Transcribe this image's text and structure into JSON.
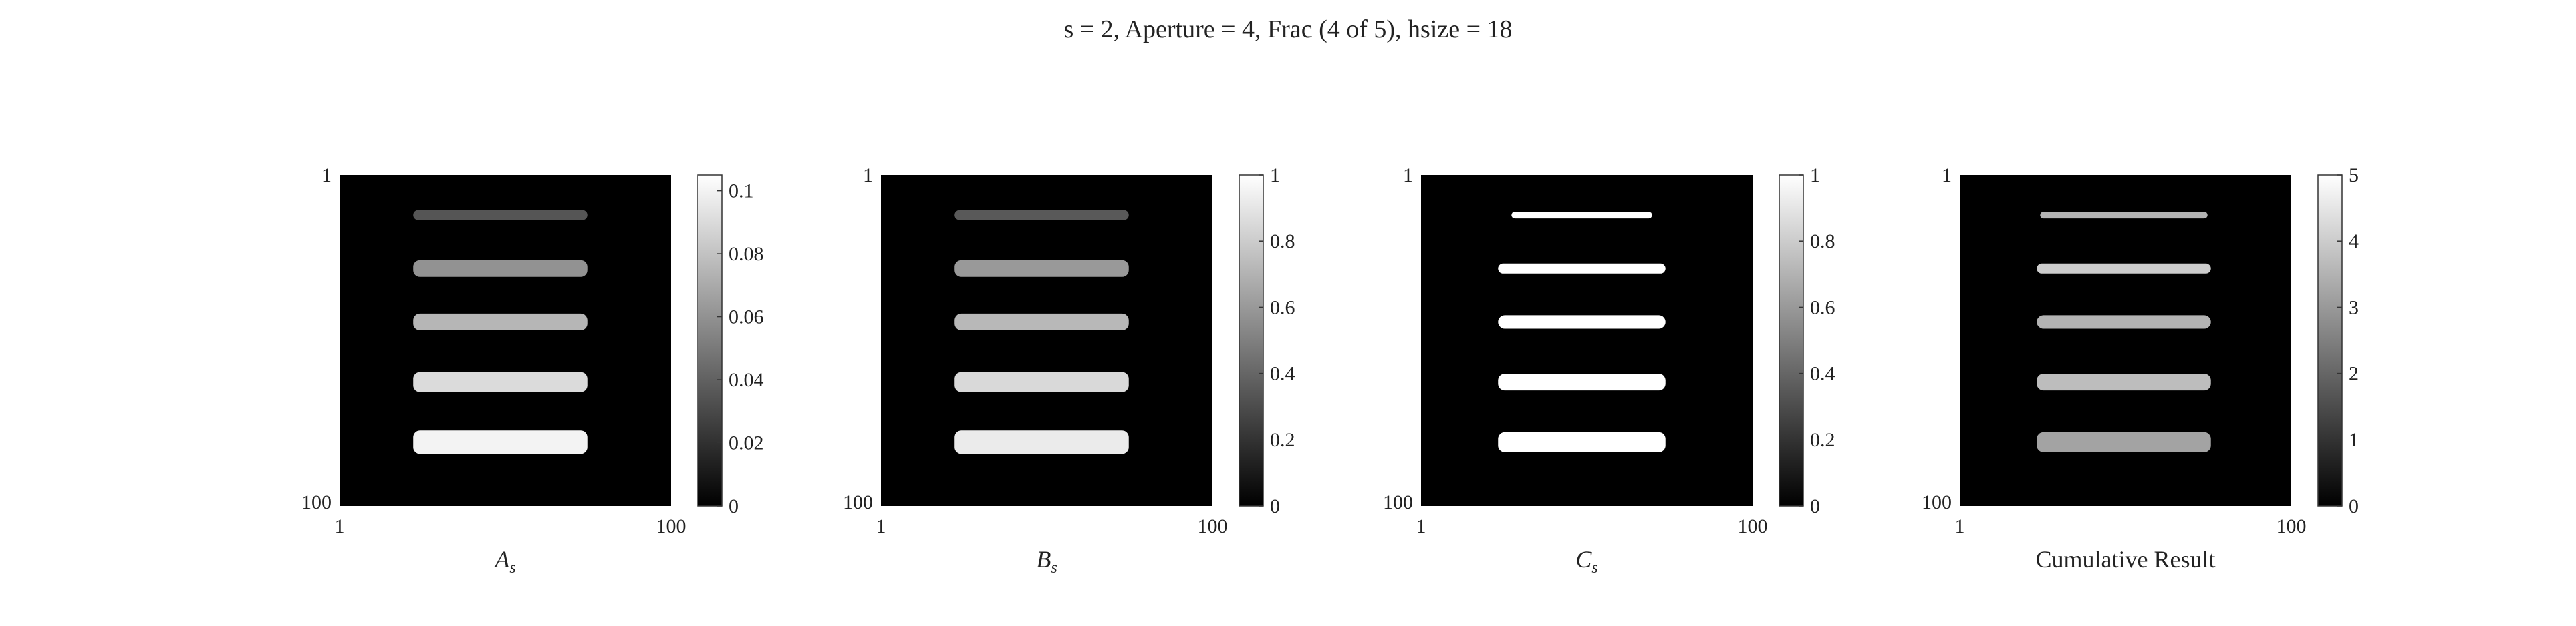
{
  "title": "s = 2, Aperture = 4, Frac (4 of 5), hsize = 18",
  "chart_data": [
    {
      "type": "heatmap",
      "xlabel_main": "A",
      "xlabel_sub": "s",
      "x_ticks": [
        "1",
        "100"
      ],
      "y_ticks": [
        "1",
        "100"
      ],
      "colormap": "gray",
      "clim": [
        0,
        0.105
      ],
      "colorbar_ticks": [
        "0",
        "0.02",
        "0.04",
        "0.06",
        "0.08",
        "0.1"
      ],
      "colorbar_values": [
        0,
        0.02,
        0.04,
        0.06,
        0.08,
        0.1
      ],
      "bars": [
        {
          "row": 13,
          "x_start": 23,
          "x_end": 75,
          "thickness": 3,
          "value": 0.035
        },
        {
          "row": 29,
          "x_start": 23,
          "x_end": 75,
          "thickness": 5,
          "value": 0.06
        },
        {
          "row": 45,
          "x_start": 23,
          "x_end": 75,
          "thickness": 5,
          "value": 0.075
        },
        {
          "row": 63,
          "x_start": 23,
          "x_end": 75,
          "thickness": 6,
          "value": 0.09
        },
        {
          "row": 81,
          "x_start": 23,
          "x_end": 75,
          "thickness": 7,
          "value": 0.1
        }
      ]
    },
    {
      "type": "heatmap",
      "xlabel_main": "B",
      "xlabel_sub": "s",
      "x_ticks": [
        "1",
        "100"
      ],
      "y_ticks": [
        "1",
        "100"
      ],
      "colormap": "gray",
      "clim": [
        0,
        1
      ],
      "colorbar_ticks": [
        "0",
        "0.2",
        "0.4",
        "0.6",
        "0.8",
        "1"
      ],
      "colorbar_values": [
        0,
        0.2,
        0.4,
        0.6,
        0.8,
        1
      ],
      "bars": [
        {
          "row": 13,
          "x_start": 23,
          "x_end": 75,
          "thickness": 3,
          "value": 0.35
        },
        {
          "row": 29,
          "x_start": 23,
          "x_end": 75,
          "thickness": 5,
          "value": 0.6
        },
        {
          "row": 45,
          "x_start": 23,
          "x_end": 75,
          "thickness": 5,
          "value": 0.72
        },
        {
          "row": 63,
          "x_start": 23,
          "x_end": 75,
          "thickness": 6,
          "value": 0.85
        },
        {
          "row": 81,
          "x_start": 23,
          "x_end": 75,
          "thickness": 7,
          "value": 0.92
        }
      ]
    },
    {
      "type": "heatmap",
      "xlabel_main": "C",
      "xlabel_sub": "s",
      "x_ticks": [
        "1",
        "100"
      ],
      "y_ticks": [
        "1",
        "100"
      ],
      "colormap": "gray",
      "clim": [
        0,
        1
      ],
      "colorbar_ticks": [
        "0",
        "0.2",
        "0.4",
        "0.6",
        "0.8",
        "1"
      ],
      "colorbar_values": [
        0,
        0.2,
        0.4,
        0.6,
        0.8,
        1
      ],
      "bars": [
        {
          "row": 13,
          "x_start": 28,
          "x_end": 70,
          "thickness": 2,
          "value": 1
        },
        {
          "row": 29,
          "x_start": 24,
          "x_end": 74,
          "thickness": 3,
          "value": 1
        },
        {
          "row": 45,
          "x_start": 24,
          "x_end": 74,
          "thickness": 4,
          "value": 1
        },
        {
          "row": 63,
          "x_start": 24,
          "x_end": 74,
          "thickness": 5,
          "value": 1
        },
        {
          "row": 81,
          "x_start": 24,
          "x_end": 74,
          "thickness": 6,
          "value": 1
        }
      ]
    },
    {
      "type": "heatmap",
      "xlabel_main": "Cumulative Result",
      "xlabel_sub": "",
      "x_ticks": [
        "1",
        "100"
      ],
      "y_ticks": [
        "1",
        "100"
      ],
      "colormap": "gray",
      "clim": [
        0,
        5
      ],
      "colorbar_ticks": [
        "0",
        "1",
        "2",
        "3",
        "4",
        "5"
      ],
      "colorbar_values": [
        0,
        1,
        2,
        3,
        4,
        5
      ],
      "bars": [
        {
          "row": 13,
          "x_start": 25,
          "x_end": 75,
          "thickness": 2,
          "value": 3.5
        },
        {
          "row": 29,
          "x_start": 24,
          "x_end": 76,
          "thickness": 3,
          "value": 4
        },
        {
          "row": 45,
          "x_start": 24,
          "x_end": 76,
          "thickness": 4,
          "value": 3.5
        },
        {
          "row": 63,
          "x_start": 24,
          "x_end": 76,
          "thickness": 5,
          "value": 3.7
        },
        {
          "row": 81,
          "x_start": 24,
          "x_end": 76,
          "thickness": 6,
          "value": 3.2
        }
      ]
    }
  ]
}
